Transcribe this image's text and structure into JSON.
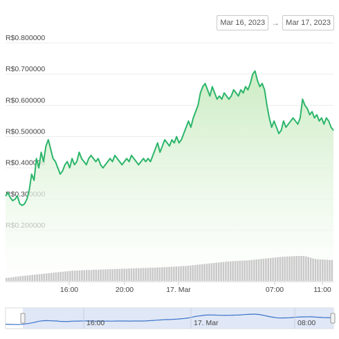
{
  "date_range": {
    "start": "Mar 16, 2023",
    "arrow": "→",
    "end": "Mar 17, 2023"
  },
  "chart_data": {
    "type": "line",
    "title": "",
    "xlabel": "",
    "ylabel": "",
    "y_ticks": [
      "R$0.800000",
      "R$0.700000",
      "R$0.600000",
      "R$0.500000",
      "R$0.400000",
      "R$0.300000",
      "R$0.200000"
    ],
    "y_tick_values": [
      0.8,
      0.7,
      0.6,
      0.5,
      0.4,
      0.3,
      0.2
    ],
    "ylim": [
      0.2,
      0.8
    ],
    "x_ticks": [
      "16:00",
      "20:00",
      "17. Mar",
      "07:00",
      "11:00"
    ],
    "navigator_x_ticks": [
      "16:00",
      "17. Mar",
      "08:00"
    ],
    "grid": true,
    "legend": "none",
    "line_color": "#2bb56a",
    "fill_color": "#d6f0cf",
    "volume_color": "#c8c8c8",
    "navigator_line_color": "#3a74c9",
    "navigator_fill_color": "#dbe3f5",
    "series": [
      {
        "values": [
          0.31,
          0.32,
          0.305,
          0.295,
          0.3,
          0.31,
          0.285,
          0.28,
          0.285,
          0.3,
          0.33,
          0.38,
          0.36,
          0.43,
          0.4,
          0.45,
          0.42,
          0.47,
          0.49,
          0.46,
          0.43,
          0.42,
          0.4,
          0.38,
          0.39,
          0.41,
          0.42,
          0.4,
          0.43,
          0.41,
          0.42,
          0.45,
          0.43,
          0.42,
          0.41,
          0.43,
          0.44,
          0.43,
          0.42,
          0.43,
          0.41,
          0.4,
          0.41,
          0.42,
          0.43,
          0.42,
          0.44,
          0.43,
          0.42,
          0.41,
          0.42,
          0.43,
          0.42,
          0.44,
          0.43,
          0.42,
          0.41,
          0.42,
          0.43,
          0.42,
          0.43,
          0.42,
          0.44,
          0.46,
          0.48,
          0.45,
          0.47,
          0.49,
          0.48,
          0.47,
          0.49,
          0.48,
          0.5,
          0.48,
          0.49,
          0.51,
          0.53,
          0.55,
          0.53,
          0.56,
          0.58,
          0.6,
          0.64,
          0.66,
          0.67,
          0.65,
          0.63,
          0.66,
          0.64,
          0.62,
          0.63,
          0.62,
          0.64,
          0.63,
          0.62,
          0.63,
          0.65,
          0.64,
          0.63,
          0.65,
          0.64,
          0.66,
          0.65,
          0.67,
          0.7,
          0.71,
          0.68,
          0.66,
          0.67,
          0.65,
          0.6,
          0.56,
          0.53,
          0.55,
          0.53,
          0.51,
          0.52,
          0.55,
          0.53,
          0.54,
          0.55,
          0.56,
          0.55,
          0.54,
          0.56,
          0.62,
          0.6,
          0.59,
          0.57,
          0.58,
          0.56,
          0.57,
          0.55,
          0.56,
          0.54,
          0.56,
          0.55,
          0.53,
          0.52
        ],
        "volume": [
          0.12,
          0.13,
          0.14,
          0.15,
          0.17,
          0.18,
          0.19,
          0.2,
          0.21,
          0.22,
          0.23,
          0.24,
          0.25,
          0.26,
          0.27,
          0.28,
          0.29,
          0.3,
          0.31,
          0.32,
          0.33,
          0.34,
          0.35,
          0.36,
          0.37,
          0.38,
          0.39,
          0.4,
          0.41,
          0.41,
          0.42,
          0.42,
          0.43,
          0.43,
          0.44,
          0.44,
          0.44,
          0.45,
          0.45,
          0.45,
          0.46,
          0.46,
          0.46,
          0.47,
          0.47,
          0.47,
          0.48,
          0.48,
          0.48,
          0.49,
          0.49,
          0.49,
          0.5,
          0.5,
          0.5,
          0.51,
          0.51,
          0.51,
          0.52,
          0.52,
          0.52,
          0.53,
          0.53,
          0.53,
          0.54,
          0.54,
          0.55,
          0.55,
          0.56,
          0.56,
          0.57,
          0.57,
          0.58,
          0.58,
          0.59,
          0.6,
          0.6,
          0.61,
          0.62,
          0.63,
          0.64,
          0.65,
          0.66,
          0.67,
          0.68,
          0.69,
          0.7,
          0.71,
          0.72,
          0.73,
          0.74,
          0.75,
          0.76,
          0.77,
          0.78,
          0.78,
          0.79,
          0.8,
          0.8,
          0.81,
          0.81,
          0.82,
          0.82,
          0.83,
          0.84,
          0.85,
          0.86,
          0.87,
          0.88,
          0.89,
          0.9,
          0.91,
          0.92,
          0.93,
          0.94,
          0.95,
          0.96,
          0.97,
          0.97,
          0.98,
          0.98,
          0.99,
          0.99,
          1.0,
          1.0,
          1.0,
          1.0,
          0.98,
          0.96,
          0.93,
          0.9,
          0.88,
          0.87,
          0.86,
          0.86,
          0.85,
          0.85,
          0.84,
          0.84
        ]
      }
    ]
  }
}
